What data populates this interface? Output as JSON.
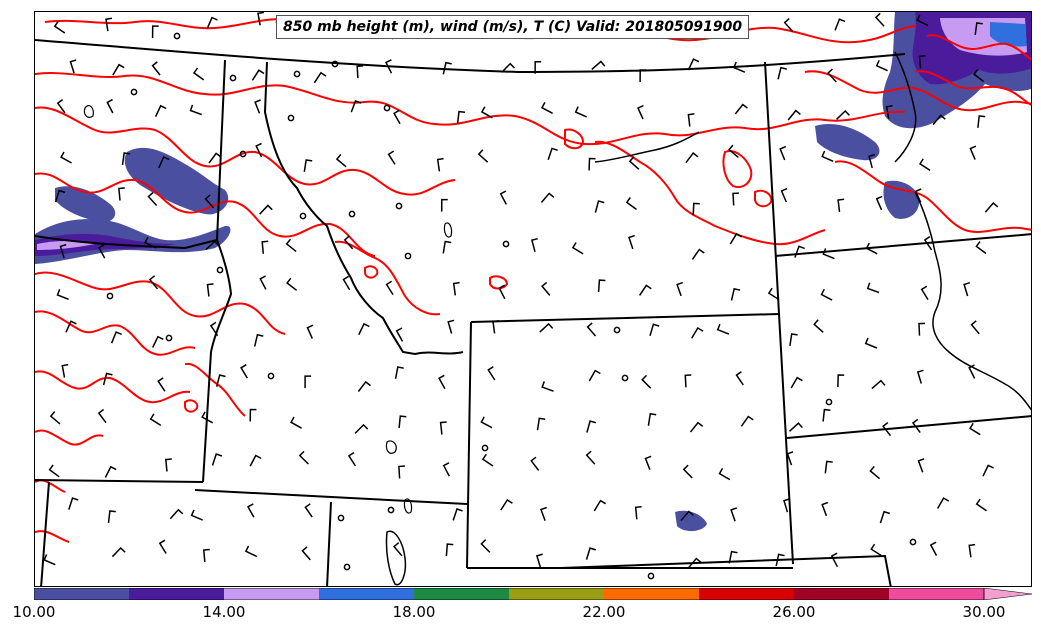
{
  "title": "850 mb height (m), wind (m/s), T (C) Valid: 201805091900",
  "colorbar": {
    "min": 10.0,
    "max": 30.0,
    "tick_labels": [
      "10.00",
      "14.00",
      "18.00",
      "22.00",
      "26.00",
      "30.00"
    ],
    "colors": [
      "#4b4fa0",
      "#4a1c9c",
      "#c89bf2",
      "#2f6fde",
      "#1d8a44",
      "#9a9e12",
      "#ff6a00",
      "#d90000",
      "#a30026",
      "#ef4c9e"
    ],
    "extend_color": "#f49fd2"
  },
  "map_colors": {
    "contour": "#ff0000",
    "boundary": "#000000",
    "wind_barb": "#000000"
  }
}
